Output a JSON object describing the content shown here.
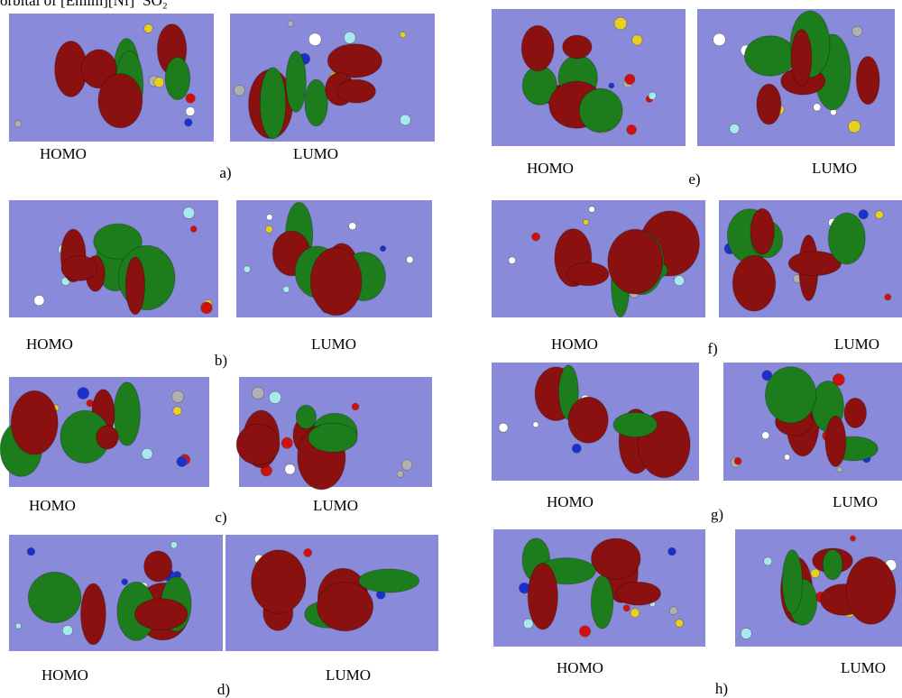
{
  "caption": "orbital of [Emim][Nf]⁻SO₂",
  "panels": [
    {
      "label": "a)",
      "homo": "HOMO",
      "lumo": "LUMO"
    },
    {
      "label": "b)",
      "homo": "HOMO",
      "lumo": "LUMO"
    },
    {
      "label": "c)",
      "homo": "HOMO",
      "lumo": "LUMO"
    },
    {
      "label": "d)",
      "homo": "HOMO",
      "lumo": "LUMO"
    },
    {
      "label": "e)",
      "homo": "HOMO",
      "lumo": "LUMO"
    },
    {
      "label": "f)",
      "homo": "HOMO",
      "lumo": "LUMO"
    },
    {
      "label": "g)",
      "homo": "HOMO",
      "lumo": "LUMO"
    },
    {
      "label": "h)",
      "homo": "HOMO",
      "lumo": "LUMO"
    }
  ]
}
